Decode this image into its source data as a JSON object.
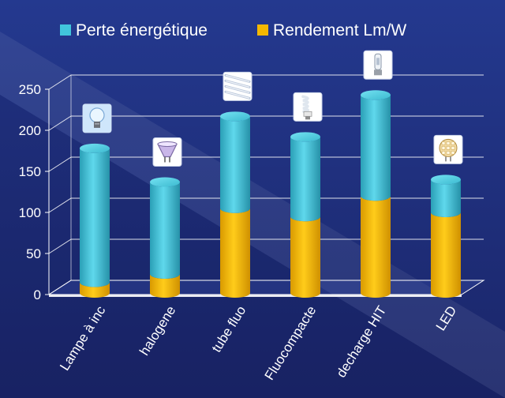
{
  "chart_data": {
    "type": "bar",
    "stacked": true,
    "style": "3d-cylinder",
    "categories": [
      "Lampe à inc",
      "halogene",
      "tube fluo",
      "Fluocompacte",
      "decharge HIT",
      "LED"
    ],
    "series": [
      {
        "name": "Rendement Lm/W",
        "color": "#f5b800",
        "values": [
          15,
          25,
          105,
          95,
          120,
          100
        ]
      },
      {
        "name": "Perte énergétique",
        "color": "#41c5dc",
        "values": [
          163,
          112,
          112,
          97,
          123,
          40
        ]
      }
    ],
    "ylim": [
      0,
      250
    ],
    "yticks": [
      0,
      50,
      100,
      150,
      200,
      250
    ],
    "grid": true,
    "legend": "top",
    "icons": [
      "light-bulb-icon",
      "halogen-spot-icon",
      "fluorescent-tube-icon",
      "compact-fluorescent-icon",
      "hit-discharge-lamp-icon",
      "led-lamp-icon"
    ]
  }
}
